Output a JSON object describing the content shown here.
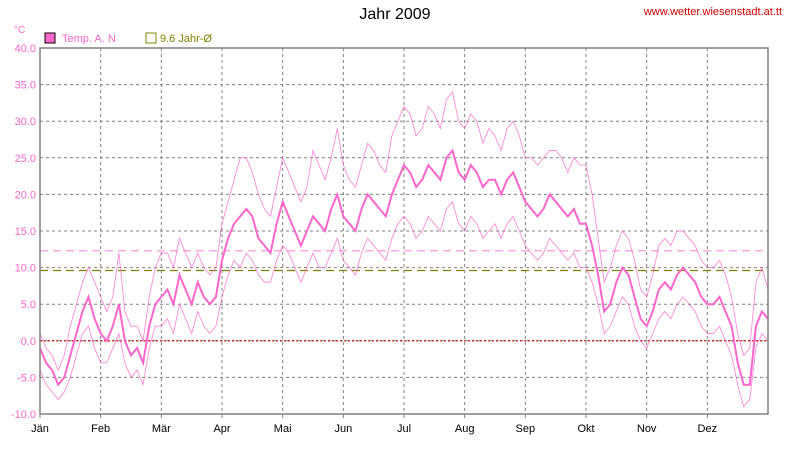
{
  "header": {
    "title": "Jahr 2009",
    "source": "www.wetter.wiesenstadt.at.tt"
  },
  "chart_data": {
    "type": "line",
    "title": "Jahr 2009",
    "unit_label": "°C",
    "ylim": [
      -10,
      40
    ],
    "y_ticks": [
      "40.0",
      "35.0",
      "30.0",
      "25.0",
      "20.0",
      "15.0",
      "10.0",
      "5.0",
      "0.0",
      "-5.0",
      "-10.0"
    ],
    "x_ticks": [
      "Jän",
      "Feb",
      "Mär",
      "Apr",
      "Mai",
      "Jun",
      "Jul",
      "Aug",
      "Sep",
      "Okt",
      "Nov",
      "Dez"
    ],
    "grid": true,
    "legend_position": "top-left",
    "legend": [
      {
        "label": "Temp. A. N",
        "color": "#ff66cc"
      },
      {
        "label": "9.6 Jahr-Ø",
        "color": "#808000"
      }
    ],
    "reference_lines": [
      {
        "name": "Jahr-Ø",
        "value": 9.6,
        "color": "#808000"
      },
      {
        "name": "upper reference",
        "value": 12.3,
        "color": "#ff99dd"
      },
      {
        "name": "zero",
        "value": 0.0,
        "color": "#cc0000"
      }
    ],
    "series": [
      {
        "name": "Temp. A. N",
        "color": "#ff66cc",
        "x_months": [
          0,
          0.1,
          0.2,
          0.3,
          0.4,
          0.5,
          0.6,
          0.7,
          0.8,
          0.9,
          1,
          1.1,
          1.2,
          1.3,
          1.4,
          1.5,
          1.6,
          1.7,
          1.8,
          1.9,
          2,
          2.1,
          2.2,
          2.3,
          2.4,
          2.5,
          2.6,
          2.7,
          2.8,
          2.9,
          3,
          3.1,
          3.2,
          3.3,
          3.4,
          3.5,
          3.6,
          3.7,
          3.8,
          3.9,
          4,
          4.1,
          4.2,
          4.3,
          4.4,
          4.5,
          4.6,
          4.7,
          4.8,
          4.9,
          5,
          5.1,
          5.2,
          5.3,
          5.4,
          5.5,
          5.6,
          5.7,
          5.8,
          5.9,
          6,
          6.1,
          6.2,
          6.3,
          6.4,
          6.5,
          6.6,
          6.7,
          6.8,
          6.9,
          7,
          7.1,
          7.2,
          7.3,
          7.4,
          7.5,
          7.6,
          7.7,
          7.8,
          7.9,
          8,
          8.1,
          8.2,
          8.3,
          8.4,
          8.5,
          8.6,
          8.7,
          8.8,
          8.9,
          9,
          9.1,
          9.2,
          9.3,
          9.4,
          9.5,
          9.6,
          9.7,
          9.8,
          9.9,
          10,
          10.1,
          10.2,
          10.3,
          10.4,
          10.5,
          10.6,
          10.7,
          10.8,
          10.9,
          11,
          11.1,
          11.2,
          11.3,
          11.4,
          11.5,
          11.6,
          11.7,
          11.8,
          11.9,
          12
        ],
        "mean": [
          -1,
          -3,
          -4,
          -6,
          -5,
          -2,
          1,
          4,
          6,
          3,
          1,
          0,
          2,
          5,
          0,
          -2,
          -1,
          -3,
          2,
          5,
          6,
          7,
          5,
          9,
          7,
          5,
          8,
          6,
          5,
          6,
          11,
          14,
          16,
          17,
          18,
          17,
          14,
          13,
          12,
          16,
          19,
          17,
          15,
          13,
          15,
          17,
          16,
          15,
          18,
          20,
          17,
          16,
          15,
          18,
          20,
          19,
          18,
          17,
          20,
          22,
          24,
          23,
          21,
          22,
          24,
          23,
          22,
          25,
          26,
          23,
          22,
          24,
          23,
          21,
          22,
          22,
          20,
          22,
          23,
          21,
          19,
          18,
          17,
          18,
          20,
          19,
          18,
          17,
          18,
          16,
          16,
          13,
          9,
          4,
          5,
          8,
          10,
          9,
          6,
          3,
          2,
          4,
          7,
          8,
          7,
          9,
          10,
          9,
          8,
          6,
          5,
          5,
          6,
          4,
          2,
          -3,
          -6,
          -6,
          2,
          4,
          3
        ],
        "max": [
          1,
          -1,
          -2,
          -4,
          -2,
          2,
          5,
          8,
          10,
          8,
          6,
          4,
          6,
          12,
          4,
          2,
          2,
          0,
          6,
          10,
          12,
          12,
          10,
          14,
          12,
          10,
          12,
          10,
          9,
          10,
          16,
          19,
          22,
          25,
          25,
          23,
          20,
          18,
          17,
          21,
          25,
          23,
          21,
          19,
          21,
          26,
          24,
          22,
          25,
          29,
          24,
          22,
          21,
          24,
          27,
          26,
          24,
          23,
          28,
          30,
          32,
          31,
          28,
          29,
          32,
          31,
          29,
          33,
          34,
          30,
          29,
          31,
          30,
          27,
          29,
          28,
          26,
          29,
          30,
          28,
          25,
          25,
          24,
          25,
          26,
          26,
          25,
          23,
          25,
          24,
          24,
          20,
          14,
          8,
          10,
          13,
          15,
          14,
          11,
          7,
          6,
          9,
          13,
          14,
          13,
          15,
          15,
          14,
          13,
          11,
          10,
          10,
          11,
          9,
          6,
          1,
          -2,
          -1,
          8,
          10,
          7
        ],
        "min": [
          -4,
          -6,
          -7,
          -8,
          -7,
          -5,
          -2,
          1,
          2,
          -1,
          -3,
          -3,
          -1,
          1,
          -3,
          -5,
          -4,
          -6,
          -1,
          2,
          2,
          3,
          1,
          5,
          3,
          1,
          4,
          2,
          1,
          2,
          6,
          9,
          11,
          10,
          12,
          11,
          9,
          8,
          8,
          11,
          13,
          12,
          10,
          8,
          10,
          12,
          10,
          10,
          12,
          14,
          11,
          10,
          9,
          12,
          14,
          13,
          12,
          11,
          14,
          16,
          17,
          16,
          14,
          15,
          17,
          16,
          15,
          18,
          19,
          16,
          15,
          17,
          16,
          14,
          15,
          16,
          14,
          16,
          17,
          15,
          13,
          12,
          11,
          12,
          14,
          13,
          12,
          11,
          12,
          10,
          10,
          8,
          5,
          1,
          2,
          4,
          6,
          5,
          2,
          0,
          -1,
          1,
          3,
          4,
          3,
          5,
          6,
          5,
          4,
          2,
          1,
          1,
          2,
          0,
          -2,
          -6,
          -9,
          -8,
          -1,
          1,
          0
        ]
      }
    ]
  }
}
